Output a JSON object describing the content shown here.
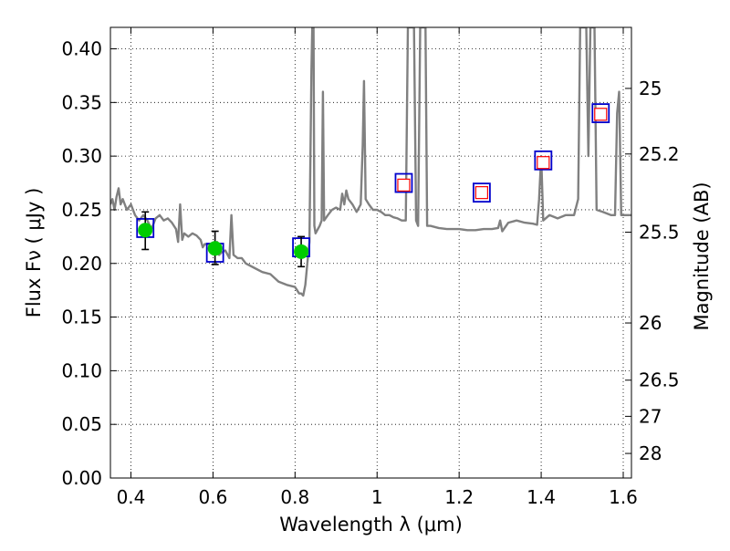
{
  "chart_data": {
    "type": "scatter",
    "xlabel": "Wavelength  λ (μm)",
    "ylabel": "Flux  Fν  ( μJy )",
    "y2label": "Magnitude (AB)",
    "xlim": [
      0.35,
      1.62
    ],
    "ylim": [
      0.0,
      0.42
    ],
    "grid": true,
    "xticks": [
      0.4,
      0.6,
      0.8,
      1.0,
      1.2,
      1.4,
      1.6
    ],
    "xtick_labels": [
      "0.4",
      "0.6",
      "0.8",
      "1",
      "1.2",
      "1.4",
      "1.6"
    ],
    "yticks": [
      0.0,
      0.05,
      0.1,
      0.15,
      0.2,
      0.25,
      0.3,
      0.35,
      0.4
    ],
    "ytick_labels": [
      "0.00",
      "0.05",
      "0.10",
      "0.15",
      "0.20",
      "0.25",
      "0.30",
      "0.35",
      "0.40"
    ],
    "y2ticks": [
      {
        "label": "25",
        "flux": 0.3631
      },
      {
        "label": "25.2",
        "flux": 0.302
      },
      {
        "label": "25.5",
        "flux": 0.2291
      },
      {
        "label": "26",
        "flux": 0.1445
      },
      {
        "label": "26.5",
        "flux": 0.0912
      },
      {
        "label": "27",
        "flux": 0.0575
      },
      {
        "label": "28",
        "flux": 0.0229
      }
    ],
    "series": [
      {
        "style": "line",
        "color": "#808080",
        "points": [
          [
            0.35,
            0.255
          ],
          [
            0.355,
            0.26
          ],
          [
            0.36,
            0.25
          ],
          [
            0.365,
            0.262
          ],
          [
            0.37,
            0.27
          ],
          [
            0.375,
            0.255
          ],
          [
            0.38,
            0.26
          ],
          [
            0.39,
            0.25
          ],
          [
            0.4,
            0.255
          ],
          [
            0.41,
            0.245
          ],
          [
            0.42,
            0.24
          ],
          [
            0.43,
            0.245
          ],
          [
            0.44,
            0.24
          ],
          [
            0.45,
            0.232
          ],
          [
            0.46,
            0.242
          ],
          [
            0.47,
            0.245
          ],
          [
            0.48,
            0.24
          ],
          [
            0.49,
            0.242
          ],
          [
            0.5,
            0.238
          ],
          [
            0.51,
            0.232
          ],
          [
            0.515,
            0.22
          ],
          [
            0.52,
            0.255
          ],
          [
            0.525,
            0.222
          ],
          [
            0.53,
            0.228
          ],
          [
            0.54,
            0.225
          ],
          [
            0.55,
            0.228
          ],
          [
            0.56,
            0.226
          ],
          [
            0.57,
            0.222
          ],
          [
            0.575,
            0.215
          ],
          [
            0.58,
            0.218
          ],
          [
            0.59,
            0.218
          ],
          [
            0.6,
            0.213
          ],
          [
            0.61,
            0.22
          ],
          [
            0.615,
            0.208
          ],
          [
            0.62,
            0.21
          ],
          [
            0.63,
            0.212
          ],
          [
            0.64,
            0.205
          ],
          [
            0.645,
            0.245
          ],
          [
            0.65,
            0.208
          ],
          [
            0.66,
            0.205
          ],
          [
            0.67,
            0.205
          ],
          [
            0.68,
            0.2
          ],
          [
            0.7,
            0.196
          ],
          [
            0.72,
            0.192
          ],
          [
            0.74,
            0.19
          ],
          [
            0.76,
            0.183
          ],
          [
            0.78,
            0.18
          ],
          [
            0.8,
            0.178
          ],
          [
            0.805,
            0.175
          ],
          [
            0.81,
            0.172
          ],
          [
            0.815,
            0.172
          ],
          [
            0.82,
            0.17
          ],
          [
            0.825,
            0.18
          ],
          [
            0.83,
            0.2
          ],
          [
            0.835,
            0.22
          ],
          [
            0.84,
            0.38
          ],
          [
            0.842,
            0.42
          ],
          [
            0.845,
            0.42
          ],
          [
            0.847,
            0.235
          ],
          [
            0.85,
            0.228
          ],
          [
            0.86,
            0.235
          ],
          [
            0.865,
            0.24
          ],
          [
            0.868,
            0.36
          ],
          [
            0.871,
            0.24
          ],
          [
            0.88,
            0.245
          ],
          [
            0.89,
            0.25
          ],
          [
            0.9,
            0.252
          ],
          [
            0.91,
            0.25
          ],
          [
            0.915,
            0.265
          ],
          [
            0.92,
            0.255
          ],
          [
            0.925,
            0.268
          ],
          [
            0.93,
            0.26
          ],
          [
            0.94,
            0.255
          ],
          [
            0.95,
            0.248
          ],
          [
            0.96,
            0.255
          ],
          [
            0.965,
            0.31
          ],
          [
            0.968,
            0.37
          ],
          [
            0.972,
            0.26
          ],
          [
            0.98,
            0.255
          ],
          [
            0.99,
            0.25
          ],
          [
            1.0,
            0.25
          ],
          [
            1.01,
            0.248
          ],
          [
            1.02,
            0.245
          ],
          [
            1.03,
            0.245
          ],
          [
            1.04,
            0.243
          ],
          [
            1.05,
            0.242
          ],
          [
            1.06,
            0.24
          ],
          [
            1.07,
            0.24
          ],
          [
            1.075,
            0.42
          ],
          [
            1.09,
            0.42
          ],
          [
            1.095,
            0.24
          ],
          [
            1.1,
            0.235
          ],
          [
            1.105,
            0.42
          ],
          [
            1.118,
            0.42
          ],
          [
            1.122,
            0.235
          ],
          [
            1.13,
            0.235
          ],
          [
            1.15,
            0.233
          ],
          [
            1.17,
            0.232
          ],
          [
            1.2,
            0.232
          ],
          [
            1.22,
            0.231
          ],
          [
            1.24,
            0.231
          ],
          [
            1.26,
            0.232
          ],
          [
            1.28,
            0.232
          ],
          [
            1.295,
            0.233
          ],
          [
            1.3,
            0.24
          ],
          [
            1.305,
            0.23
          ],
          [
            1.32,
            0.238
          ],
          [
            1.34,
            0.24
          ],
          [
            1.36,
            0.238
          ],
          [
            1.38,
            0.237
          ],
          [
            1.39,
            0.236
          ],
          [
            1.395,
            0.26
          ],
          [
            1.4,
            0.3
          ],
          [
            1.405,
            0.24
          ],
          [
            1.42,
            0.245
          ],
          [
            1.44,
            0.242
          ],
          [
            1.46,
            0.245
          ],
          [
            1.48,
            0.245
          ],
          [
            1.49,
            0.26
          ],
          [
            1.495,
            0.42
          ],
          [
            1.51,
            0.42
          ],
          [
            1.515,
            0.3
          ],
          [
            1.52,
            0.42
          ],
          [
            1.53,
            0.42
          ],
          [
            1.535,
            0.25
          ],
          [
            1.55,
            0.248
          ],
          [
            1.57,
            0.245
          ],
          [
            1.58,
            0.245
          ],
          [
            1.585,
            0.34
          ],
          [
            1.59,
            0.36
          ],
          [
            1.595,
            0.245
          ],
          [
            1.6,
            0.245
          ],
          [
            1.62,
            0.245
          ]
        ]
      },
      {
        "style": "blue-square",
        "color": "#0000cc",
        "points": [
          [
            0.435,
            0.233
          ],
          [
            0.605,
            0.21
          ],
          [
            0.815,
            0.215
          ],
          [
            1.065,
            0.275
          ],
          [
            1.255,
            0.266
          ],
          [
            1.405,
            0.296
          ],
          [
            1.545,
            0.34
          ]
        ]
      },
      {
        "style": "red-square",
        "color": "#ff0000",
        "points": [
          [
            1.065,
            0.273
          ],
          [
            1.255,
            0.266
          ],
          [
            1.405,
            0.294
          ],
          [
            1.545,
            0.339
          ]
        ]
      },
      {
        "style": "green-circle",
        "color": "#00cc00",
        "errorbar_color": "#000000",
        "points": [
          {
            "x": 0.435,
            "y": 0.231,
            "ylo": 0.213,
            "yhi": 0.248
          },
          {
            "x": 0.605,
            "y": 0.214,
            "ylo": 0.199,
            "yhi": 0.23
          },
          {
            "x": 0.815,
            "y": 0.211,
            "ylo": 0.197,
            "yhi": 0.225
          }
        ]
      }
    ]
  }
}
